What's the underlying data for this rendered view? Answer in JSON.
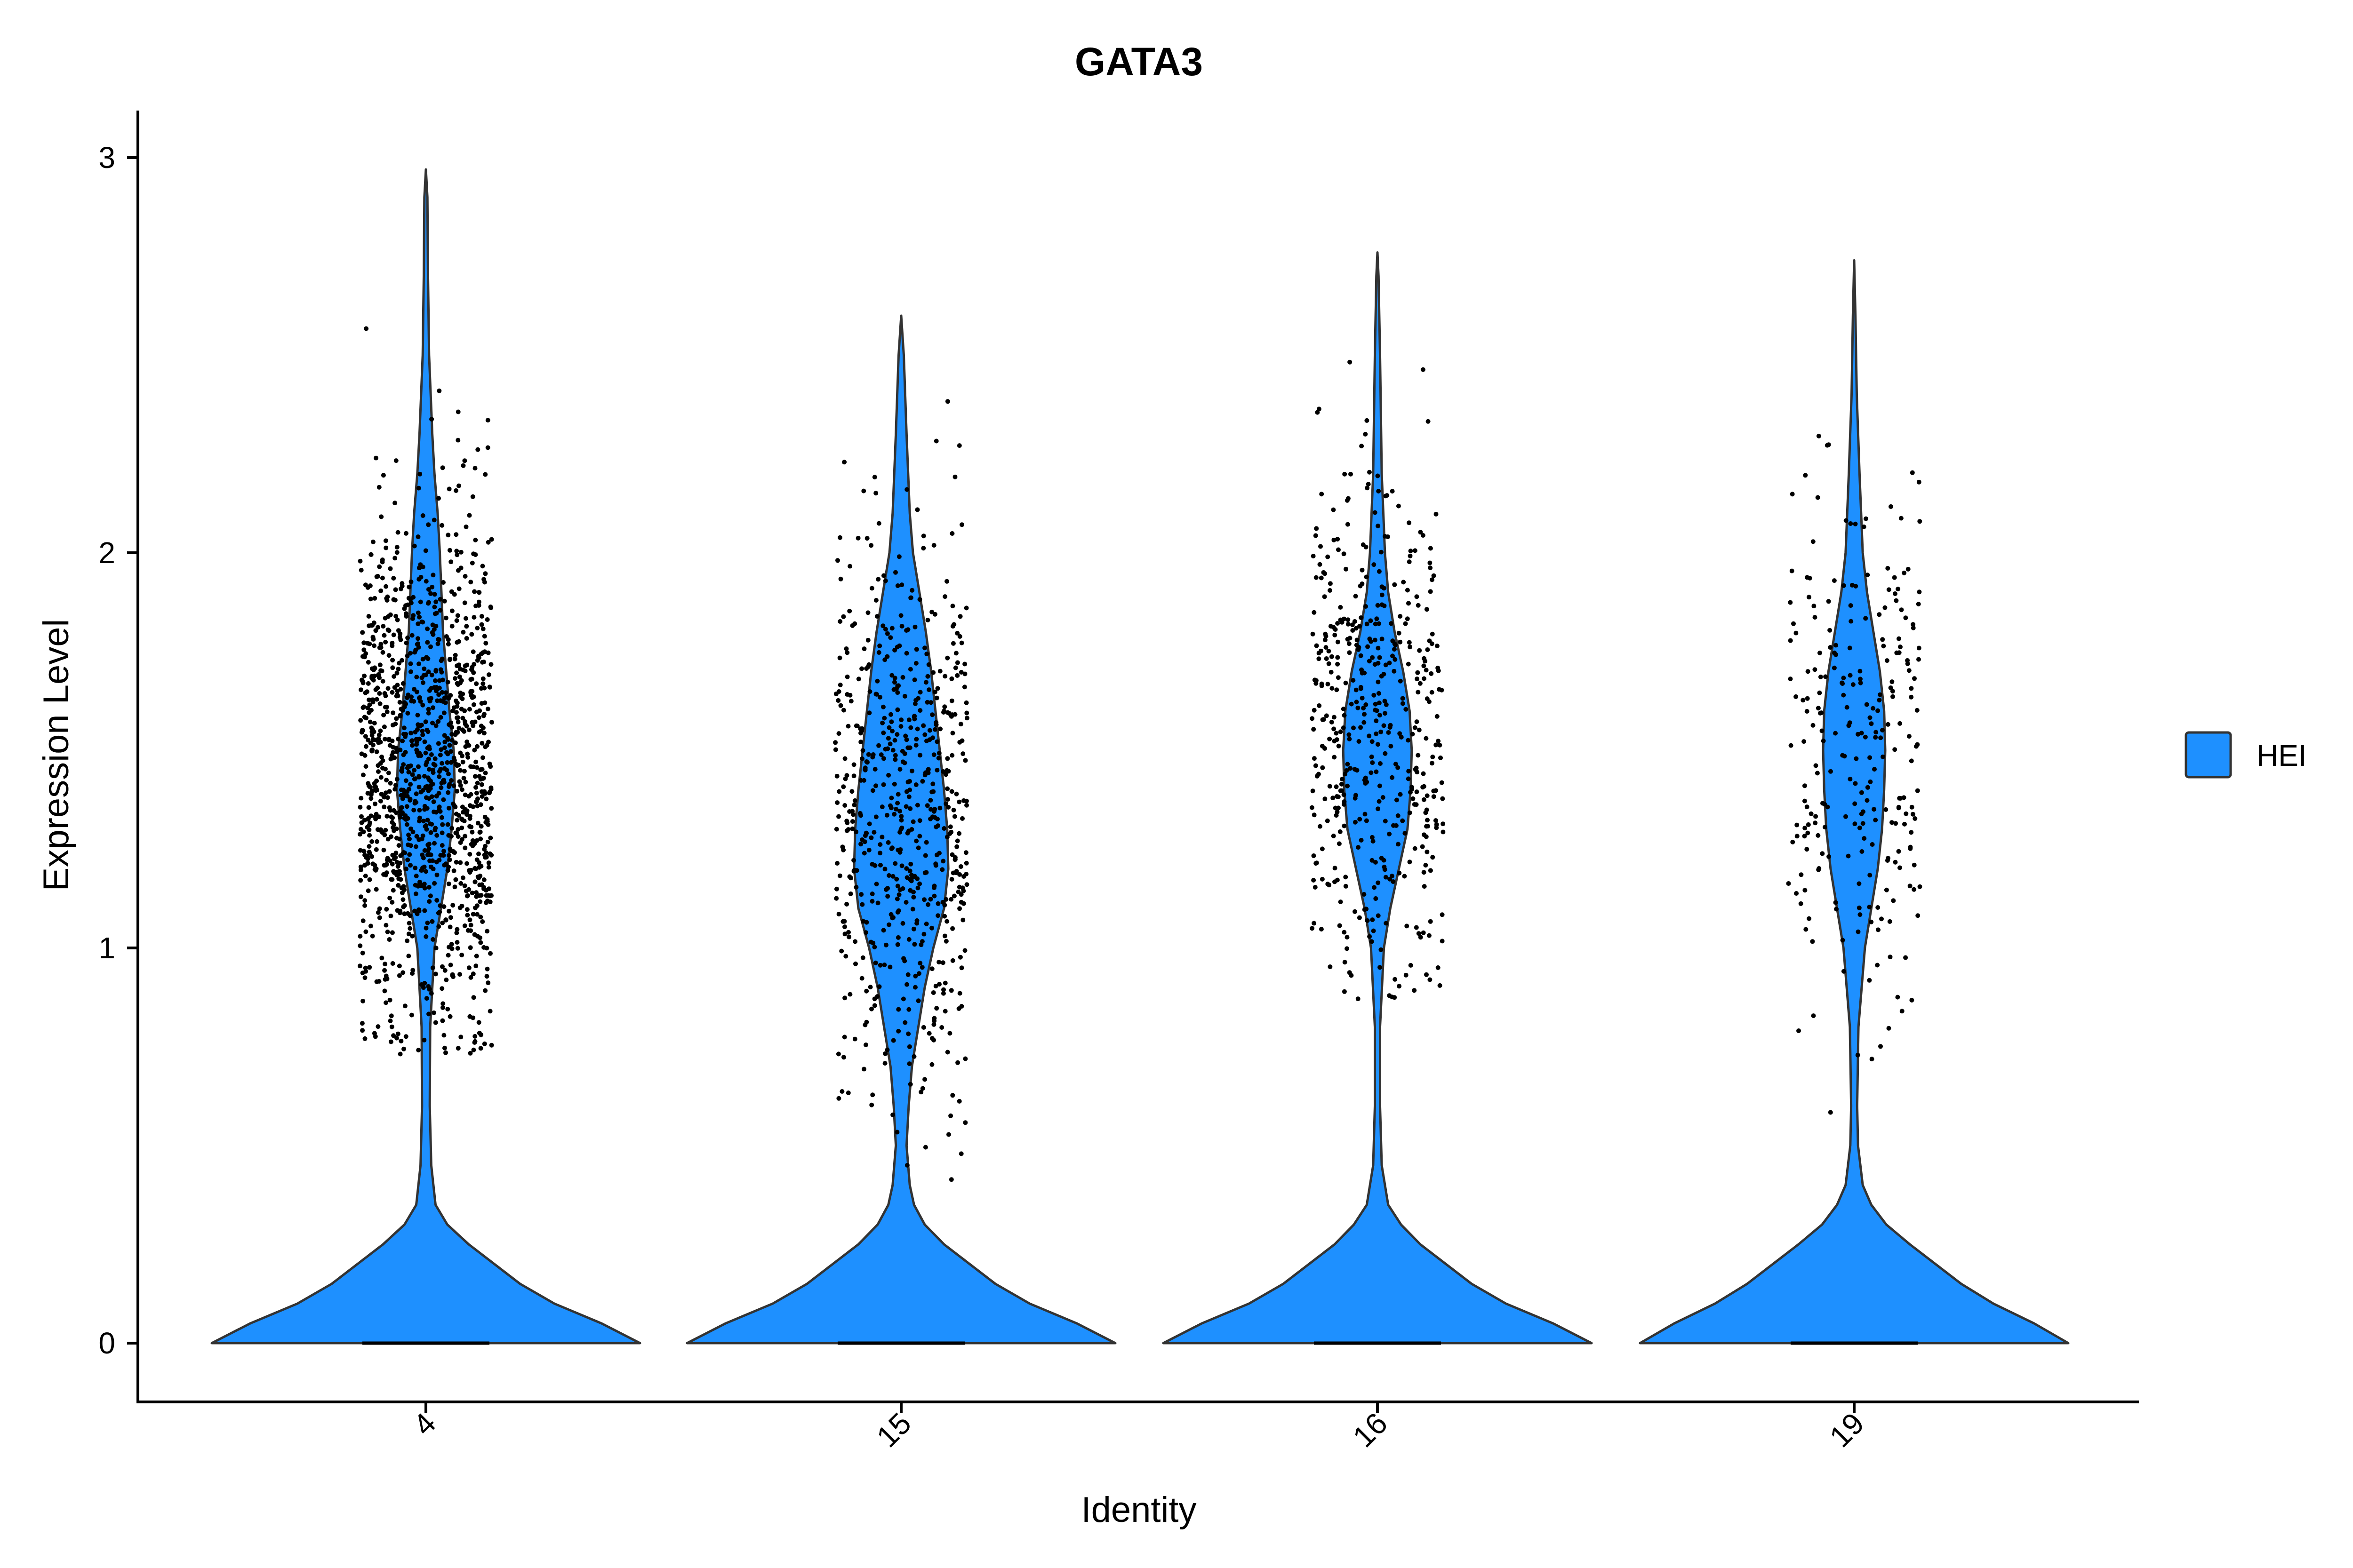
{
  "chart_data": {
    "type": "violin",
    "title": "GATA3",
    "xlabel": "Identity",
    "ylabel": "Expression Level",
    "categories": [
      "4",
      "15",
      "16",
      "19"
    ],
    "ylim": [
      -0.15,
      3.1
    ],
    "y_ticks": [
      0,
      1,
      2,
      3
    ],
    "x_tick_rotation": -45,
    "grid": false,
    "legend_position": "right",
    "series": [
      {
        "name": "HEI",
        "color": "#1E90FF",
        "groups": [
          {
            "category": "4",
            "max": 2.97,
            "zero_fraction": "large",
            "nonzero_center": 1.45,
            "density": [
              [
                0,
                1.0
              ],
              [
                0.05,
                0.82
              ],
              [
                0.1,
                0.6
              ],
              [
                0.15,
                0.44
              ],
              [
                0.2,
                0.32
              ],
              [
                0.25,
                0.2
              ],
              [
                0.3,
                0.1
              ],
              [
                0.35,
                0.045
              ],
              [
                0.45,
                0.025
              ],
              [
                0.6,
                0.018
              ],
              [
                0.8,
                0.02
              ],
              [
                1.0,
                0.04
              ],
              [
                1.1,
                0.07
              ],
              [
                1.2,
                0.1
              ],
              [
                1.3,
                0.12
              ],
              [
                1.4,
                0.135
              ],
              [
                1.5,
                0.13
              ],
              [
                1.6,
                0.11
              ],
              [
                1.7,
                0.095
              ],
              [
                1.8,
                0.08
              ],
              [
                2.0,
                0.065
              ],
              [
                2.1,
                0.055
              ],
              [
                2.2,
                0.04
              ],
              [
                2.3,
                0.03
              ],
              [
                2.5,
                0.015
              ],
              [
                2.7,
                0.01
              ],
              [
                2.9,
                0.007
              ],
              [
                2.97,
                0.0
              ]
            ],
            "points": {
              "count": 1300,
              "center": 1.45,
              "spread": 0.32,
              "min": 0.72,
              "max": 2.97
            }
          },
          {
            "category": "15",
            "max": 2.6,
            "zero_fraction": "large",
            "nonzero_center": 1.3,
            "density": [
              [
                0,
                1.0
              ],
              [
                0.05,
                0.82
              ],
              [
                0.1,
                0.6
              ],
              [
                0.15,
                0.44
              ],
              [
                0.2,
                0.32
              ],
              [
                0.25,
                0.2
              ],
              [
                0.3,
                0.11
              ],
              [
                0.35,
                0.06
              ],
              [
                0.4,
                0.04
              ],
              [
                0.5,
                0.025
              ],
              [
                0.6,
                0.035
              ],
              [
                0.7,
                0.05
              ],
              [
                0.8,
                0.08
              ],
              [
                0.9,
                0.11
              ],
              [
                1.0,
                0.15
              ],
              [
                1.1,
                0.2
              ],
              [
                1.2,
                0.22
              ],
              [
                1.3,
                0.215
              ],
              [
                1.4,
                0.2
              ],
              [
                1.5,
                0.18
              ],
              [
                1.6,
                0.16
              ],
              [
                1.7,
                0.14
              ],
              [
                1.8,
                0.115
              ],
              [
                1.9,
                0.085
              ],
              [
                2.0,
                0.055
              ],
              [
                2.1,
                0.04
              ],
              [
                2.3,
                0.025
              ],
              [
                2.5,
                0.012
              ],
              [
                2.6,
                0.0
              ]
            ],
            "points": {
              "count": 620,
              "center": 1.35,
              "spread": 0.35,
              "min": 0.4,
              "max": 2.6
            }
          },
          {
            "category": "16",
            "max": 2.76,
            "zero_fraction": "large",
            "nonzero_center": 1.5,
            "density": [
              [
                0,
                1.0
              ],
              [
                0.05,
                0.82
              ],
              [
                0.1,
                0.6
              ],
              [
                0.15,
                0.44
              ],
              [
                0.2,
                0.32
              ],
              [
                0.25,
                0.2
              ],
              [
                0.3,
                0.11
              ],
              [
                0.35,
                0.05
              ],
              [
                0.45,
                0.02
              ],
              [
                0.6,
                0.012
              ],
              [
                0.8,
                0.012
              ],
              [
                1.0,
                0.03
              ],
              [
                1.1,
                0.06
              ],
              [
                1.2,
                0.1
              ],
              [
                1.3,
                0.14
              ],
              [
                1.4,
                0.155
              ],
              [
                1.5,
                0.16
              ],
              [
                1.6,
                0.15
              ],
              [
                1.7,
                0.12
              ],
              [
                1.8,
                0.08
              ],
              [
                1.9,
                0.05
              ],
              [
                2.0,
                0.035
              ],
              [
                2.2,
                0.02
              ],
              [
                2.5,
                0.012
              ],
              [
                2.7,
                0.005
              ],
              [
                2.76,
                0.0
              ]
            ],
            "points": {
              "count": 480,
              "center": 1.55,
              "spread": 0.34,
              "min": 0.87,
              "max": 2.76
            }
          },
          {
            "category": "19",
            "max": 2.74,
            "zero_fraction": "large",
            "nonzero_center": 1.5,
            "density": [
              [
                0,
                1.0
              ],
              [
                0.05,
                0.84
              ],
              [
                0.1,
                0.65
              ],
              [
                0.15,
                0.5
              ],
              [
                0.2,
                0.38
              ],
              [
                0.25,
                0.26
              ],
              [
                0.3,
                0.15
              ],
              [
                0.35,
                0.08
              ],
              [
                0.4,
                0.04
              ],
              [
                0.5,
                0.018
              ],
              [
                0.6,
                0.014
              ],
              [
                0.8,
                0.02
              ],
              [
                1.0,
                0.05
              ],
              [
                1.1,
                0.08
              ],
              [
                1.2,
                0.11
              ],
              [
                1.3,
                0.13
              ],
              [
                1.4,
                0.14
              ],
              [
                1.5,
                0.145
              ],
              [
                1.6,
                0.14
              ],
              [
                1.7,
                0.12
              ],
              [
                1.8,
                0.09
              ],
              [
                1.9,
                0.06
              ],
              [
                2.0,
                0.04
              ],
              [
                2.2,
                0.025
              ],
              [
                2.4,
                0.012
              ],
              [
                2.6,
                0.006
              ],
              [
                2.74,
                0.0
              ]
            ],
            "points": {
              "count": 250,
              "center": 1.5,
              "spread": 0.35,
              "min": 0.52,
              "max": 2.3
            }
          }
        ]
      }
    ]
  },
  "legend": {
    "items": [
      {
        "label": "HEI",
        "color": "#1E90FF"
      }
    ]
  }
}
